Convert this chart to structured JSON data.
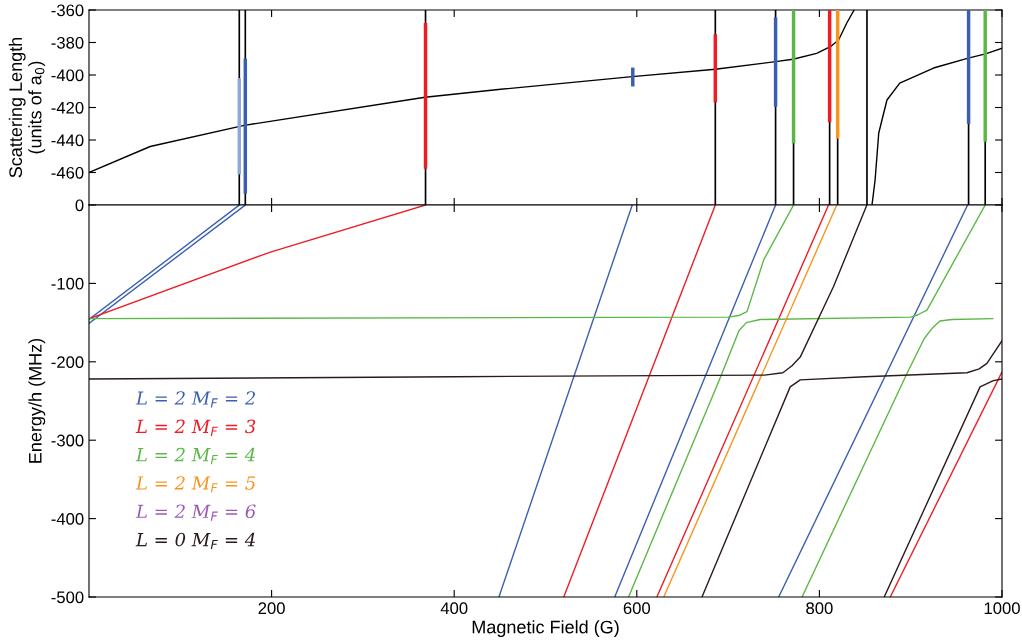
{
  "chart_data": [
    {
      "type": "line",
      "ylabel": "Scattering Length\n(units of a$_{0}$)",
      "xlim": [
        0,
        1000
      ],
      "xticks": [
        200,
        400,
        600,
        800,
        1000
      ],
      "ylim": [
        -480,
        -360
      ],
      "yticks": [
        -460,
        -440,
        -420,
        -400,
        -380,
        -360
      ],
      "tick_labels": "y",
      "grid": false,
      "legend": false,
      "ref_lines": [
        {
          "axis": "x",
          "value": 164.6,
          "color": "#000000"
        },
        {
          "axis": "x",
          "value": 171.2,
          "color": "#000000"
        },
        {
          "axis": "x",
          "value": 368.6,
          "color": "#000000"
        },
        {
          "axis": "x",
          "value": 686,
          "color": "#000000"
        },
        {
          "axis": "x",
          "value": 752,
          "color": "#000000"
        },
        {
          "axis": "x",
          "value": 771.7,
          "color": "#000000"
        },
        {
          "axis": "x",
          "value": 811.2,
          "color": "#000000"
        },
        {
          "axis": "x",
          "value": 820,
          "color": "#000000"
        },
        {
          "axis": "x",
          "value": 852.1,
          "color": "#000000"
        },
        {
          "axis": "x",
          "value": 963.4,
          "color": "#000000"
        },
        {
          "axis": "x",
          "value": 981.6,
          "color": "#000000"
        }
      ],
      "series": [
        {
          "color": "#000000",
          "x": [
            0,
            67,
            170,
            368,
            451,
            595,
            686,
            752,
            771,
            797,
            812,
            821,
            830,
            838
          ],
          "values": [
            -460,
            -444,
            -431,
            -413.7,
            -408.8,
            -401,
            -396.5,
            -391.8,
            -390.3,
            -386.7,
            -382.6,
            -378.5,
            -368,
            -360
          ]
        },
        {
          "color": "#000000",
          "x": [
            857.6,
            861,
            865,
            874,
            888,
            925,
            963,
            982,
            1000
          ],
          "values": [
            -480,
            -464.6,
            -435.7,
            -415.4,
            -405,
            -395.7,
            -389.6,
            -387,
            -383.6
          ]
        },
        {
          "color": "#8fa8dc",
          "x": [
            164.6,
            164.6
          ],
          "values": [
            -460,
            -403
          ]
        },
        {
          "color": "#3a5fb0",
          "x": [
            171.2,
            171.2
          ],
          "values": [
            -472,
            -391
          ]
        },
        {
          "color": "#ee1c24",
          "x": [
            368.6,
            368.6
          ],
          "values": [
            -456.6,
            -369
          ]
        },
        {
          "color": "#3a5fb0",
          "x": [
            595.6,
            595.6
          ],
          "values": [
            -406,
            -396.5
          ]
        },
        {
          "color": "#ee1c24",
          "x": [
            686,
            686
          ],
          "values": [
            -415.8,
            -376
          ]
        },
        {
          "color": "#3a5fb0",
          "x": [
            752,
            752
          ],
          "values": [
            -418.5,
            -365.7
          ]
        },
        {
          "color": "#5cb846",
          "x": [
            771.7,
            771.7
          ],
          "values": [
            -441,
            -360
          ]
        },
        {
          "color": "#ee1c24",
          "x": [
            811.2,
            811.2
          ],
          "values": [
            -428,
            -360
          ]
        },
        {
          "color": "#f7941d",
          "x": [
            820,
            820
          ],
          "values": [
            -438,
            -360
          ]
        },
        {
          "color": "#3a5fb0",
          "x": [
            963.4,
            963.4
          ],
          "values": [
            -429,
            -360
          ]
        },
        {
          "color": "#5cb846",
          "x": [
            981.6,
            981.6
          ],
          "values": [
            -440,
            -360
          ]
        }
      ]
    },
    {
      "type": "line",
      "xlabel": "Magnetic Field (G)",
      "ylabel": "Energy/h (MHz)",
      "xlim": [
        0,
        1000
      ],
      "xticks": [
        200,
        400,
        600,
        800,
        1000
      ],
      "ylim": [
        -500,
        0
      ],
      "yticks": [
        -500,
        -400,
        -300,
        -200,
        -100,
        0
      ],
      "grid": false,
      "legend": "bottom left",
      "series": [
        {
          "name": "L = 2 M$_{F}$ = 2",
          "color": "#3a5fb0",
          "x": [
            0,
            164.6
          ],
          "values": [
            -146,
            0
          ]
        },
        {
          "color": "#3a5fb0",
          "x": [
            0,
            171.2
          ],
          "values": [
            -151,
            0
          ]
        },
        {
          "color": "#3a5fb0",
          "x": [
            449,
            595
          ],
          "values": [
            -500,
            0
          ]
        },
        {
          "color": "#3a5fb0",
          "x": [
            575.8,
            752
          ],
          "values": [
            -500,
            0
          ]
        },
        {
          "color": "#3a5fb0",
          "x": [
            755.4,
            962.3
          ],
          "values": [
            -500,
            0
          ]
        },
        {
          "name": "L = 2 M$_{F}$ = 3",
          "color": "#ee1c24",
          "x": [
            0,
            198.7,
            368.6
          ],
          "values": [
            -145,
            -60,
            0
          ]
        },
        {
          "color": "#ee1c24",
          "x": [
            520,
            686
          ],
          "values": [
            -500,
            0
          ]
        },
        {
          "color": "#ee1c24",
          "x": [
            622,
            810
          ],
          "values": [
            -500,
            0
          ]
        },
        {
          "color": "#ee1c24",
          "x": [
            877.6,
            1000
          ],
          "values": [
            -500,
            -213
          ]
        },
        {
          "name": "L = 2 M$_{F}$ = 4",
          "color": "#5cb846",
          "x": [
            0,
            700,
            711.5,
            720.7,
            739,
            771.7
          ],
          "values": [
            -145,
            -143,
            -141,
            -136,
            -70,
            0
          ]
        },
        {
          "color": "#5cb846",
          "x": [
            591,
            691.5,
            712,
            720,
            735,
            900,
            908,
            917.8,
            981.6
          ],
          "values": [
            -500,
            -220,
            -160,
            -150,
            -146,
            -143,
            -140,
            -134,
            0
          ]
        },
        {
          "color": "#5cb846",
          "x": [
            781,
            895.9,
            915,
            923,
            932,
            945,
            990
          ],
          "values": [
            -500,
            -215,
            -170,
            -158,
            -148,
            -146,
            -145
          ]
        },
        {
          "name": "L = 2 M$_{F}$ = 5",
          "color": "#f7941d",
          "x": [
            629.5,
            819
          ],
          "values": [
            -500,
            0
          ]
        },
        {
          "name": "L = 2 M$_{F}$ = 6",
          "color": "#9b59b6"
        },
        {
          "name": "L = 0 M$_{F}$ = 4",
          "color": "#2a1a1a",
          "x": [
            0,
            400,
            740,
            760,
            770,
            779,
            815.5,
            852
          ],
          "values": [
            -222,
            -219,
            -217,
            -214,
            -205,
            -194,
            -104,
            0
          ]
        },
        {
          "color": "#2a1a1a",
          "x": [
            671.4,
            768,
            779,
            850,
            961.6,
            975,
            983.5,
            1000
          ],
          "values": [
            -500,
            -232,
            -223,
            -219,
            -214,
            -209,
            -202,
            -173
          ]
        },
        {
          "color": "#2a1a1a",
          "x": [
            871,
            976,
            990.5,
            1000
          ],
          "values": [
            -500,
            -232,
            -224,
            -222
          ]
        }
      ]
    }
  ]
}
